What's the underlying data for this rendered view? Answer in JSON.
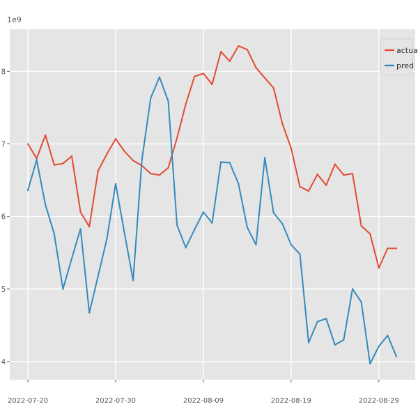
{
  "chart_data": {
    "type": "line",
    "title": "",
    "xlabel": "",
    "ylabel": "",
    "y_offset_label": "1e9",
    "x": [
      "2022-07-20",
      "2022-07-21",
      "2022-07-22",
      "2022-07-23",
      "2022-07-24",
      "2022-07-25",
      "2022-07-26",
      "2022-07-27",
      "2022-07-28",
      "2022-07-29",
      "2022-07-30",
      "2022-07-31",
      "2022-08-01",
      "2022-08-02",
      "2022-08-03",
      "2022-08-04",
      "2022-08-05",
      "2022-08-06",
      "2022-08-07",
      "2022-08-08",
      "2022-08-09",
      "2022-08-10",
      "2022-08-11",
      "2022-08-12",
      "2022-08-13",
      "2022-08-14",
      "2022-08-15",
      "2022-08-16",
      "2022-08-17",
      "2022-08-18",
      "2022-08-19",
      "2022-08-20",
      "2022-08-21",
      "2022-08-22",
      "2022-08-23",
      "2022-08-24",
      "2022-08-25",
      "2022-08-26",
      "2022-08-27",
      "2022-08-28",
      "2022-08-29",
      "2022-08-30",
      "2022-08-31"
    ],
    "xticks": [
      "2022-07-20",
      "2022-07-30",
      "2022-08-09",
      "2022-08-19",
      "2022-08-29"
    ],
    "yticks": [
      4,
      5,
      6,
      7,
      8
    ],
    "ylim": [
      3.75,
      8.58
    ],
    "grid": true,
    "legend_position": "top-right",
    "series": [
      {
        "name": "actual",
        "color": "#e24a33",
        "values": [
          7.0,
          6.8,
          7.12,
          6.71,
          6.73,
          6.83,
          6.06,
          5.86,
          6.63,
          6.86,
          7.07,
          6.9,
          6.77,
          6.7,
          6.59,
          6.57,
          6.67,
          7.08,
          7.55,
          7.93,
          7.97,
          7.82,
          8.27,
          8.14,
          8.35,
          8.3,
          8.05,
          7.91,
          7.77,
          7.28,
          6.94,
          6.41,
          6.35,
          6.58,
          6.43,
          6.72,
          6.57,
          6.59,
          5.87,
          5.76,
          5.29,
          5.56,
          5.56
        ]
      },
      {
        "name": "pred",
        "color": "#348abd",
        "values": [
          6.36,
          6.78,
          6.16,
          5.76,
          5.0,
          5.42,
          5.83,
          4.67,
          5.18,
          5.69,
          6.45,
          5.78,
          5.12,
          6.78,
          7.63,
          7.92,
          7.59,
          5.88,
          5.57,
          5.82,
          6.06,
          5.91,
          6.75,
          6.74,
          6.45,
          5.85,
          5.61,
          6.81,
          6.05,
          5.9,
          5.61,
          5.48,
          4.26,
          4.55,
          4.59,
          4.23,
          4.3,
          5.0,
          4.82,
          3.97,
          4.21,
          4.36,
          4.07
        ]
      }
    ]
  }
}
